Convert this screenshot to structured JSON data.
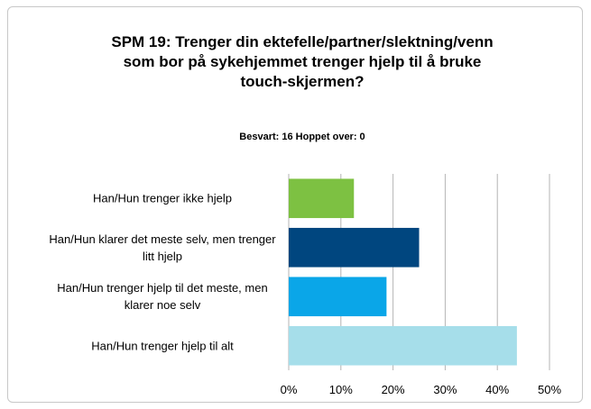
{
  "chart_data": {
    "type": "bar",
    "orientation": "horizontal",
    "title": "SPM 19: Trenger din ektefelle/partner/slektning/venn som bor på sykehjemmet trenger hjelp til å bruke touch-skjermen?",
    "subtitle": "Besvart: 16  Hoppet over: 0",
    "categories": [
      "Han/Hun trenger ikke hjelp",
      "Han/Hun klarer det meste selv, men trenger litt hjelp",
      "Han/Hun trenger hjelp til det meste, men klarer noe selv",
      "Han/Hun trenger hjelp til alt"
    ],
    "values": [
      12.5,
      25,
      18.75,
      43.75
    ],
    "colors": [
      "#7dc142",
      "#00467f",
      "#0aa6e8",
      "#a6deea"
    ],
    "xlim": [
      0,
      50
    ],
    "xticks": [
      {
        "value": 0,
        "label": "0%"
      },
      {
        "value": 10,
        "label": "10%"
      },
      {
        "value": 20,
        "label": "20%"
      },
      {
        "value": 30,
        "label": "30%"
      },
      {
        "value": 40,
        "label": "40%"
      },
      {
        "value": 50,
        "label": "50%"
      }
    ],
    "grid": true
  }
}
